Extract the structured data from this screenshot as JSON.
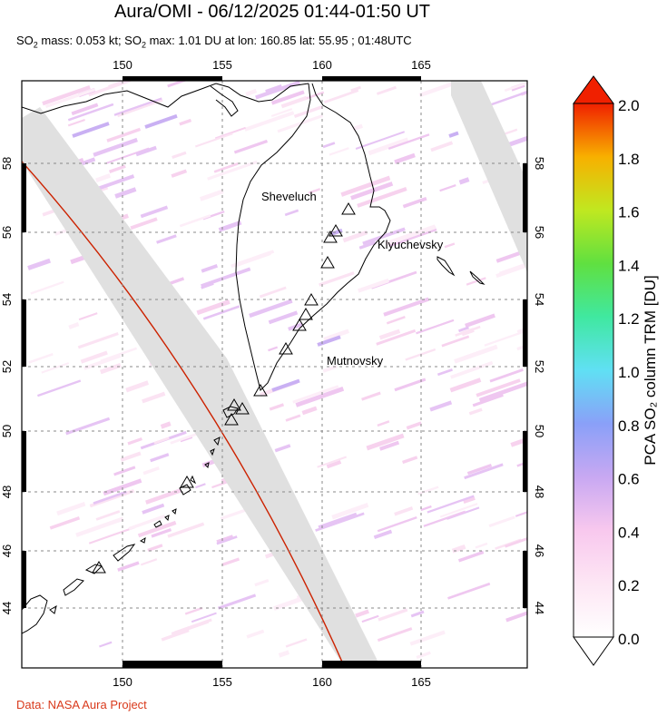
{
  "title": "Aura/OMI - 06/12/2025 01:44-01:50 UT",
  "subtitle": {
    "mass_label": "SO",
    "mass_sub": "2",
    "mass_text": " mass: 0.053 kt; SO",
    "max_sub": "2",
    "max_text": " max: 1.01 DU at lon: 160.85 lat: 55.95 ; 01:48UTC"
  },
  "credit": "Data: NASA Aura Project",
  "map": {
    "lon_ticks": [
      "150",
      "155",
      "160",
      "165"
    ],
    "lat_ticks": [
      "58",
      "56",
      "54",
      "52",
      "50",
      "48",
      "46",
      "44"
    ],
    "volcanoes": [
      {
        "name": "Sheveluch"
      },
      {
        "name": "Klyuchevsky"
      },
      {
        "name": "Mutnovsky"
      }
    ],
    "colors": {
      "swath_gap": "#e0e0e0",
      "orbit_line": "#cc2200",
      "coast": "#000000"
    }
  },
  "colorbar": {
    "label": "PCA SO₂ column TRM [DU]",
    "ticks": [
      "2.0",
      "1.8",
      "1.6",
      "1.4",
      "1.2",
      "1.0",
      "0.8",
      "0.6",
      "0.4",
      "0.2",
      "0.0"
    ],
    "min": 0.0,
    "max": 2.0
  }
}
